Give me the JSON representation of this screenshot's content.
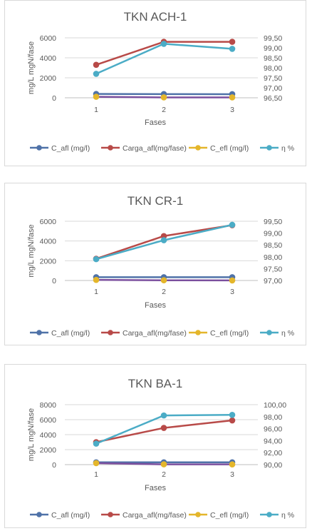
{
  "colors": {
    "C_afl": "#4f72a8",
    "Carga_afl": "#b84a48",
    "C_efl": "#e4b62b",
    "C_efl_line": "#7b4f9e",
    "eta": "#4bacc6",
    "grid": "#d9d9d9",
    "axis": "#bfbfbf"
  },
  "chart_data": [
    {
      "type": "line",
      "title": "TKN ACH-1",
      "xlabel": "Fases",
      "ylabel": "mg/L mgN/fase",
      "categories": [
        "1",
        "2",
        "3"
      ],
      "ylim": [
        0,
        6000
      ],
      "yticks": [
        "0",
        "2000",
        "4000",
        "6000"
      ],
      "y2lim": [
        96.5,
        99.5
      ],
      "y2ticks": [
        "96,50",
        "97,00",
        "97,50",
        "98,00",
        "98,50",
        "99,00",
        "99,50"
      ],
      "grid": true,
      "legend": "bottom",
      "series": [
        {
          "name": "C_afl (mg/l)",
          "axis": "left",
          "color_key": "C_afl",
          "values": [
            380,
            370,
            360
          ]
        },
        {
          "name": "Carga_afl(mg/fase)",
          "axis": "left",
          "color_key": "Carga_afl",
          "values": [
            3300,
            5600,
            5600
          ]
        },
        {
          "name": "C_efl (mg/l)",
          "axis": "left",
          "color_key": "C_efl",
          "values": [
            100,
            40,
            40
          ]
        },
        {
          "name": "η %",
          "axis": "right",
          "color_key": "eta",
          "values": [
            97.7,
            99.2,
            98.95
          ]
        }
      ]
    },
    {
      "type": "line",
      "title": "TKN CR-1",
      "xlabel": "Fases",
      "ylabel": "mg/L mgN/fase",
      "categories": [
        "1",
        "2",
        "3"
      ],
      "ylim": [
        0,
        6000
      ],
      "yticks": [
        "0",
        "2000",
        "4000",
        "6000"
      ],
      "y2lim": [
        97.0,
        99.5
      ],
      "y2ticks": [
        "97,00",
        "97,50",
        "98,00",
        "98,50",
        "99,00",
        "99,50"
      ],
      "grid": true,
      "legend": "bottom",
      "series": [
        {
          "name": "C_afl (mg/l)",
          "axis": "left",
          "color_key": "C_afl",
          "values": [
            330,
            330,
            330
          ]
        },
        {
          "name": "Carga_afl(mg/fase)",
          "axis": "left",
          "color_key": "Carga_afl",
          "values": [
            2200,
            4500,
            5600
          ]
        },
        {
          "name": "C_efl (mg/l)",
          "axis": "left",
          "color_key": "C_efl",
          "values": [
            60,
            20,
            5
          ]
        },
        {
          "name": "η %",
          "axis": "right",
          "color_key": "eta",
          "values": [
            97.9,
            98.7,
            99.35
          ]
        }
      ]
    },
    {
      "type": "line",
      "title": "TKN BA-1",
      "xlabel": "Fases",
      "ylabel": "mg/L mgN/fase",
      "categories": [
        "1",
        "2",
        "3"
      ],
      "ylim": [
        0,
        8000
      ],
      "yticks": [
        "0",
        "2000",
        "4000",
        "6000",
        "8000"
      ],
      "y2lim": [
        90.0,
        100.0
      ],
      "y2ticks": [
        "90,00",
        "92,00",
        "94,00",
        "96,00",
        "98,00",
        "100,00"
      ],
      "grid": true,
      "legend": "bottom",
      "series": [
        {
          "name": "C_afl (mg/l)",
          "axis": "left",
          "color_key": "C_afl",
          "values": [
            310,
            310,
            310
          ]
        },
        {
          "name": "Carga_afl(mg/fase)",
          "axis": "left",
          "color_key": "Carga_afl",
          "values": [
            3000,
            4900,
            5900
          ]
        },
        {
          "name": "C_efl (mg/l)",
          "axis": "left",
          "color_key": "C_efl",
          "values": [
            200,
            40,
            30
          ]
        },
        {
          "name": "η %",
          "axis": "right",
          "color_key": "eta",
          "values": [
            93.5,
            98.2,
            98.3
          ]
        }
      ]
    }
  ]
}
